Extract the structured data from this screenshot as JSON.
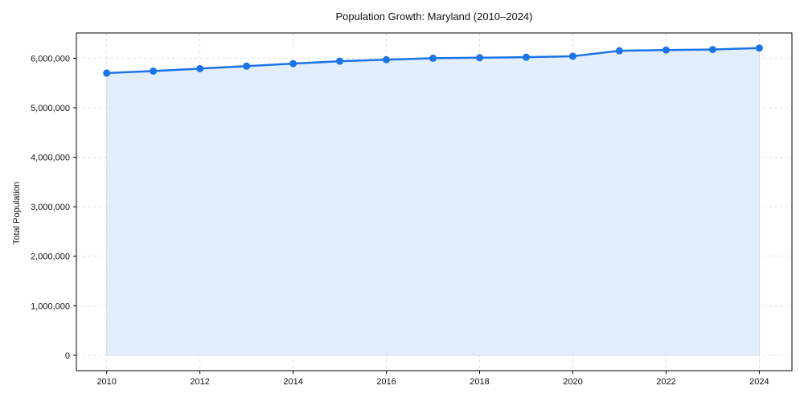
{
  "chart_data": {
    "type": "line",
    "title": "Population Growth: Maryland (2010–2024)",
    "xlabel": "",
    "ylabel": "Total Population",
    "x": [
      2010,
      2011,
      2012,
      2013,
      2014,
      2015,
      2016,
      2017,
      2018,
      2019,
      2020,
      2021,
      2022,
      2023,
      2024
    ],
    "series": [
      {
        "name": "Total Population",
        "values": [
          5700000,
          5740000,
          5790000,
          5840000,
          5890000,
          5940000,
          5970000,
          6000000,
          6010000,
          6020000,
          6040000,
          6150000,
          6165000,
          6175000,
          6205000
        ],
        "color": "#1a73e8",
        "fill": "#e3eefc"
      }
    ],
    "xticks": [
      2010,
      2012,
      2014,
      2016,
      2018,
      2020,
      2022,
      2024
    ],
    "yticks": [
      0,
      1000000,
      2000000,
      3000000,
      4000000,
      5000000,
      6000000
    ],
    "ytick_labels": [
      "0",
      "1,000,000",
      "2,000,000",
      "3,000,000",
      "4,000,000",
      "5,000,000",
      "6,000,000"
    ],
    "xlim": [
      2009.35,
      2024.7
    ],
    "ylim": [
      -310000,
      6510000
    ],
    "grid": true,
    "legend": null
  }
}
